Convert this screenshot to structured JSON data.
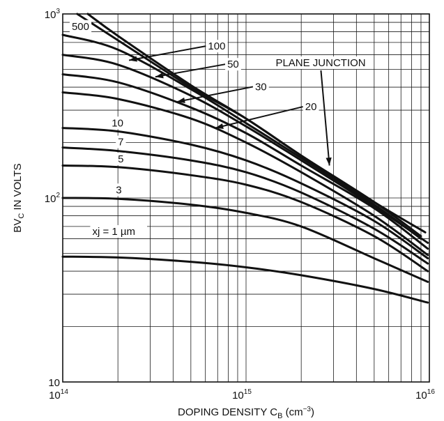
{
  "chart_data": {
    "type": "line",
    "title": "",
    "xlabel": "DOPING DENSITY C",
    "xlabel_sub": "B",
    "xlabel_unit_prefix": " (cm",
    "xlabel_unit_exp": "−3",
    "xlabel_unit_suffix": ")",
    "ylabel": "BV",
    "ylabel_sub": "C",
    "ylabel_rest": "  IN VOLTS",
    "x_scale": "log",
    "y_scale": "log",
    "xlim": [
      100000000000000.0,
      1e+16
    ],
    "ylim": [
      10,
      1000
    ],
    "grid": true,
    "x_ticks": [
      {
        "value": 100000000000000.0,
        "base": "10",
        "exp": "14"
      },
      {
        "value": 1000000000000000.0,
        "base": "10",
        "exp": "15"
      },
      {
        "value": 1e+16,
        "base": "10",
        "exp": "16"
      }
    ],
    "y_ticks": [
      {
        "value": 10,
        "base": "10",
        "exp": ""
      },
      {
        "value": 100,
        "base": "10",
        "exp": "2"
      },
      {
        "value": 1000,
        "base": "10",
        "exp": "3"
      }
    ],
    "series": [
      {
        "name": "PLANE JUNCTION",
        "x": [
          120000000000000.0,
          200000000000000.0,
          500000000000000.0,
          1000000000000000.0,
          2000000000000000.0,
          5000000000000000.0,
          9500000000000000.0
        ],
        "y": [
          1000,
          720,
          400,
          270,
          170,
          95,
          65
        ]
      },
      {
        "name": "500",
        "x": [
          137000000000000.0,
          200000000000000.0,
          500000000000000.0,
          1000000000000000.0,
          2000000000000000.0,
          5000000000000000.0,
          9000000000000000.0
        ],
        "y": [
          1000,
          760,
          410,
          270,
          170,
          95,
          62
        ]
      },
      {
        "name": "100",
        "x": [
          100000000000000.0,
          200000000000000.0,
          500000000000000.0,
          1000000000000000.0,
          2000000000000000.0,
          5000000000000000.0,
          9000000000000000.0
        ],
        "y": [
          770,
          640,
          390,
          255,
          165,
          92,
          60
        ]
      },
      {
        "name": "50",
        "x": [
          100000000000000.0,
          200000000000000.0,
          500000000000000.0,
          1000000000000000.0,
          2000000000000000.0,
          5000000000000000.0,
          9800000000000000.0
        ],
        "y": [
          600,
          530,
          360,
          245,
          160,
          90,
          57
        ]
      },
      {
        "name": "30",
        "x": [
          100000000000000.0,
          200000000000000.0,
          500000000000000.0,
          1000000000000000.0,
          2000000000000000.0,
          5000000000000000.0,
          9800000000000000.0
        ],
        "y": [
          470,
          425,
          310,
          225,
          150,
          88,
          53
        ]
      },
      {
        "name": "20",
        "x": [
          100000000000000.0,
          200000000000000.0,
          500000000000000.0,
          1000000000000000.0,
          2000000000000000.0,
          5000000000000000.0,
          9800000000000000.0
        ],
        "y": [
          375,
          345,
          270,
          200,
          138,
          80,
          49
        ]
      },
      {
        "name": "10",
        "x": [
          100000000000000.0,
          200000000000000.0,
          500000000000000.0,
          1000000000000000.0,
          2000000000000000.0,
          5000000000000000.0,
          9800000000000000.0
        ],
        "y": [
          240,
          230,
          195,
          160,
          120,
          75,
          47
        ]
      },
      {
        "name": "7",
        "x": [
          100000000000000.0,
          200000000000000.0,
          500000000000000.0,
          1000000000000000.0,
          2000000000000000.0,
          5000000000000000.0,
          9800000000000000.0
        ],
        "y": [
          188,
          180,
          160,
          138,
          107,
          68,
          44
        ]
      },
      {
        "name": "5",
        "x": [
          100000000000000.0,
          200000000000000.0,
          500000000000000.0,
          1000000000000000.0,
          2000000000000000.0,
          5000000000000000.0,
          9800000000000000.0
        ],
        "y": [
          150,
          147,
          133,
          118,
          95,
          62,
          40
        ]
      },
      {
        "name": "3",
        "x": [
          100000000000000.0,
          200000000000000.0,
          500000000000000.0,
          1000000000000000.0,
          2000000000000000.0,
          5000000000000000.0,
          9800000000000000.0
        ],
        "y": [
          100,
          99,
          92,
          83,
          70,
          47,
          35
        ]
      },
      {
        "name": "xj = 1 µm",
        "x": [
          100000000000000.0,
          200000000000000.0,
          500000000000000.0,
          1000000000000000.0,
          2000000000000000.0,
          5000000000000000.0,
          9800000000000000.0
        ],
        "y": [
          48,
          47.5,
          45,
          42,
          38,
          32,
          27
        ]
      }
    ],
    "annotations": [
      {
        "label": "500",
        "text_x": 112000000000000.0,
        "text_y": 820,
        "arrow": false
      },
      {
        "label": "100",
        "text_x": 620000000000000.0,
        "text_y": 640,
        "arrow_to_x": 230000000000000.0,
        "arrow_to_y": 560,
        "arrow": true
      },
      {
        "label": "50",
        "text_x": 790000000000000.0,
        "text_y": 510,
        "arrow_to_x": 320000000000000.0,
        "arrow_to_y": 455,
        "arrow": true
      },
      {
        "label": "30",
        "text_x": 1120000000000000.0,
        "text_y": 385,
        "arrow_to_x": 420000000000000.0,
        "arrow_to_y": 333,
        "arrow": true
      },
      {
        "label": "20",
        "text_x": 2100000000000000.0,
        "text_y": 300,
        "arrow_to_x": 680000000000000.0,
        "arrow_to_y": 240,
        "arrow": true
      },
      {
        "label": "PLANE JUNCTION",
        "text_x": 1450000000000000.0,
        "text_y": 520,
        "arrow_to_x": 2850000000000000.0,
        "arrow_to_y": 150,
        "arrow": true
      },
      {
        "label": "10",
        "text_x": 185000000000000.0,
        "text_y": 245,
        "arrow": false
      },
      {
        "label": "7",
        "text_x": 200000000000000.0,
        "text_y": 193,
        "arrow": false
      },
      {
        "label": "5",
        "text_x": 200000000000000.0,
        "text_y": 156,
        "arrow": false
      },
      {
        "label": "3",
        "text_x": 195000000000000.0,
        "text_y": 106,
        "arrow": false
      },
      {
        "label": "xj = 1 µm",
        "text_x": 145000000000000.0,
        "text_y": 63,
        "arrow": false
      }
    ]
  }
}
